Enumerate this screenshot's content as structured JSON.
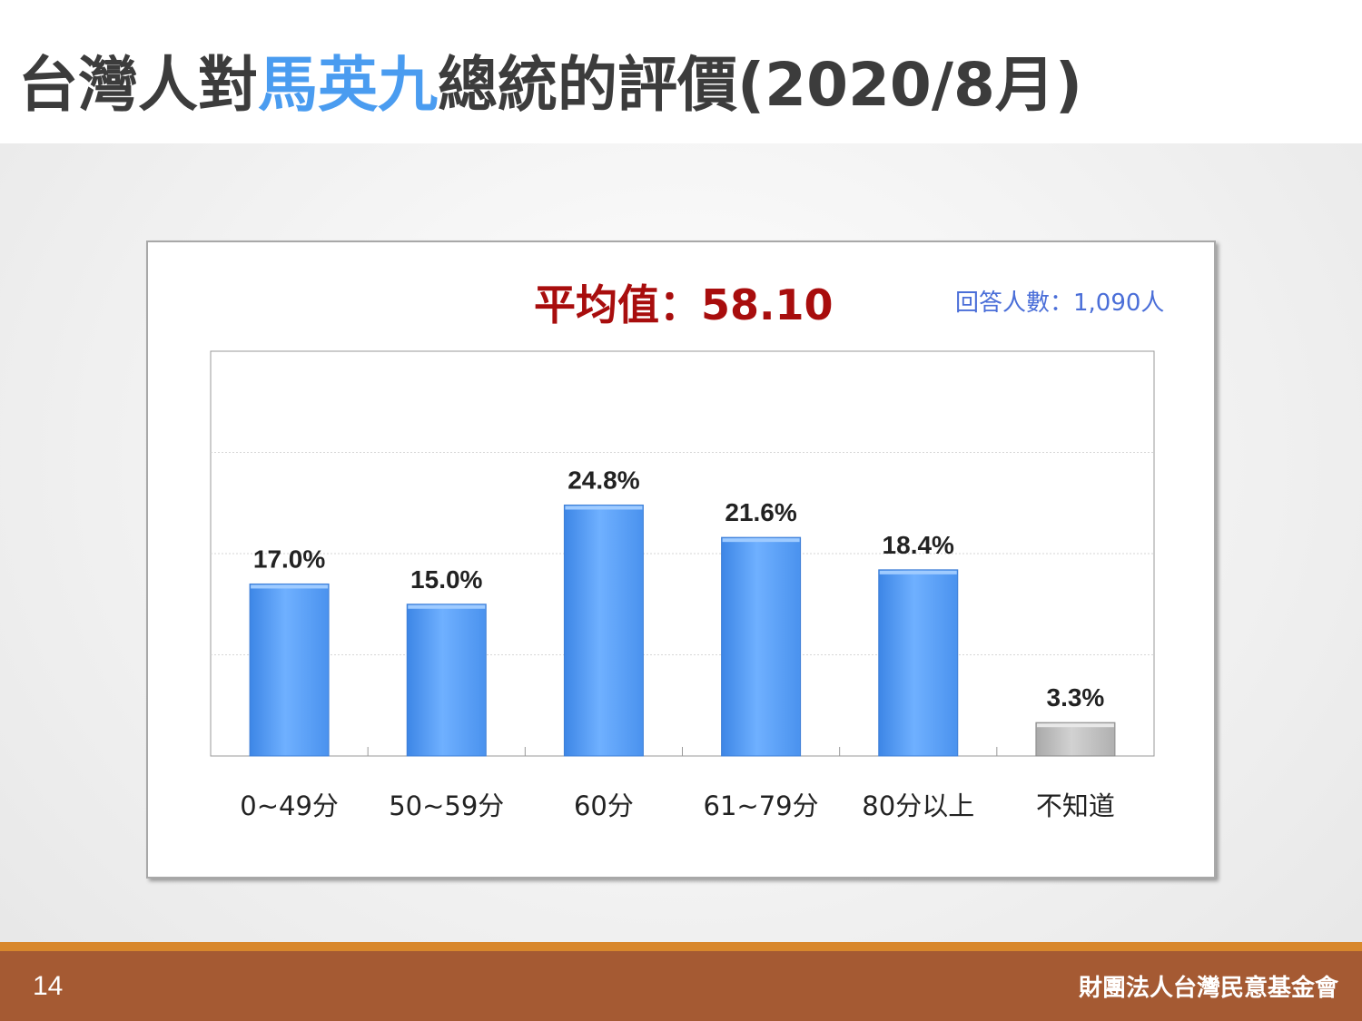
{
  "title": {
    "prefix": "台灣人對",
    "highlight": "馬英九",
    "suffix": "總統的評價(2020/8月)"
  },
  "summary": {
    "mean": "平均值：58.10",
    "respondents": "回答人數：1,090人"
  },
  "footer": {
    "page": "14",
    "org": "財團法人台灣民意基金會"
  },
  "colors": {
    "bar": "#5aa2f5",
    "bar_unknown": "#bdbdbd",
    "title_highlight": "#4a9cf0",
    "mean": "#a80d0d",
    "footer": "#a55a33"
  },
  "chart_data": {
    "type": "bar",
    "title": "",
    "xlabel": "",
    "ylabel": "",
    "ylim": [
      0,
      40
    ],
    "grid": true,
    "categories": [
      "0~49分",
      "50~59分",
      "60分",
      "61~79分",
      "80分以上",
      "不知道"
    ],
    "values": [
      17.0,
      15.0,
      24.8,
      21.6,
      18.4,
      3.3
    ],
    "labels": [
      "17.0%",
      "15.0%",
      "24.8%",
      "21.6%",
      "18.4%",
      "3.3%"
    ]
  }
}
